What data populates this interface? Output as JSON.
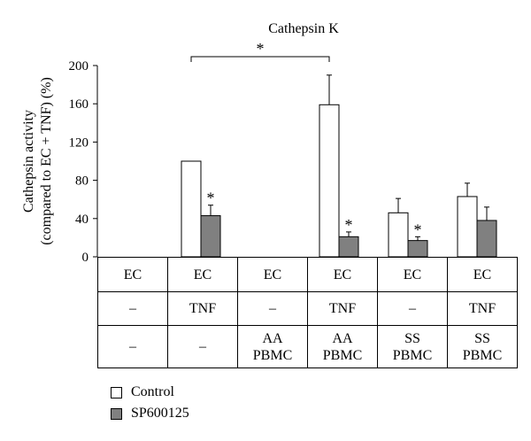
{
  "chart_data": {
    "type": "bar",
    "title": "Cathepsin K",
    "ylabel_lines": [
      "Cathepsin activity",
      "(compared to EC + TNF) (%)"
    ],
    "ylim": [
      0,
      200
    ],
    "yticks": [
      0,
      40,
      80,
      120,
      160,
      200
    ],
    "grid": false,
    "legend_position": "bottom-left",
    "categories": [
      [
        "EC",
        "–",
        "–"
      ],
      [
        "EC",
        "TNF",
        "–"
      ],
      [
        "EC",
        "–",
        "AA\nPBMC"
      ],
      [
        "EC",
        "TNF",
        "AA\nPBMC"
      ],
      [
        "EC",
        "–",
        "SS\nPBMC"
      ],
      [
        "EC",
        "TNF",
        "SS\nPBMC"
      ]
    ],
    "series": [
      {
        "name": "Control",
        "color": "#ffffff",
        "values": [
          0,
          100,
          0,
          159,
          46,
          63
        ],
        "errors": [
          0,
          0,
          0,
          31,
          15,
          14
        ],
        "significant": [
          false,
          false,
          false,
          false,
          false,
          false
        ]
      },
      {
        "name": "SP600125",
        "color": "#808080",
        "values": [
          0,
          43,
          0,
          21,
          17,
          38
        ],
        "errors": [
          0,
          11,
          0,
          5,
          4,
          14
        ],
        "significant": [
          false,
          true,
          false,
          true,
          true,
          false
        ]
      }
    ],
    "significance_marker": "*",
    "comparison_bracket": {
      "from_category": 1,
      "to_category": 3,
      "label": "*"
    }
  }
}
